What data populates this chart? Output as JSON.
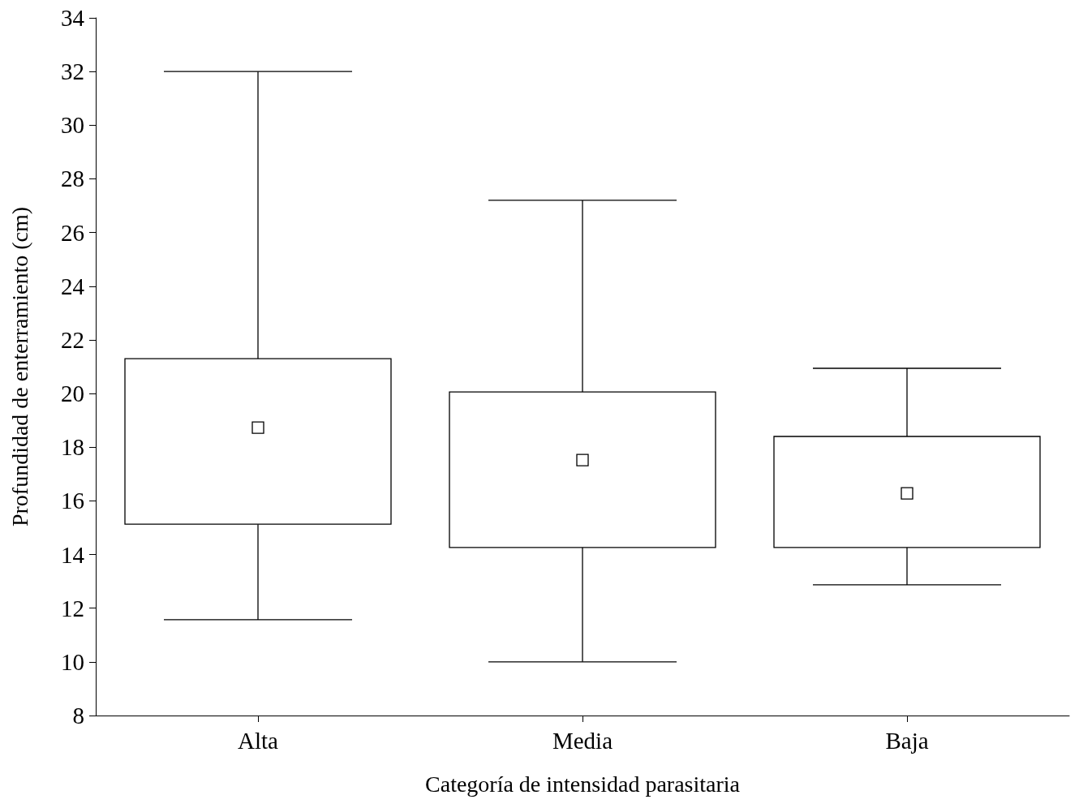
{
  "chart_data": {
    "type": "box",
    "xlabel": "Categoría de intensidad parasitaria",
    "ylabel": "Profundidad de enterramiento (cm)",
    "categories": [
      "Alta",
      "Media",
      "Baja"
    ],
    "boxes": [
      {
        "low": 11.57,
        "q1": 15.13,
        "median": 18.73,
        "q3": 21.3,
        "high": 32
      },
      {
        "low": 10,
        "q1": 14.26,
        "median": 17.52,
        "q3": 20.06,
        "high": 27.2
      },
      {
        "low": 12.87,
        "q1": 14.26,
        "median": 16.28,
        "q3": 18.4,
        "high": 20.94
      }
    ],
    "color": "#000000",
    "ylim": [
      8,
      34
    ],
    "yticks": [
      8,
      10,
      12,
      14,
      16,
      18,
      20,
      22,
      24,
      26,
      28,
      30,
      32,
      34
    ],
    "grid": false
  }
}
